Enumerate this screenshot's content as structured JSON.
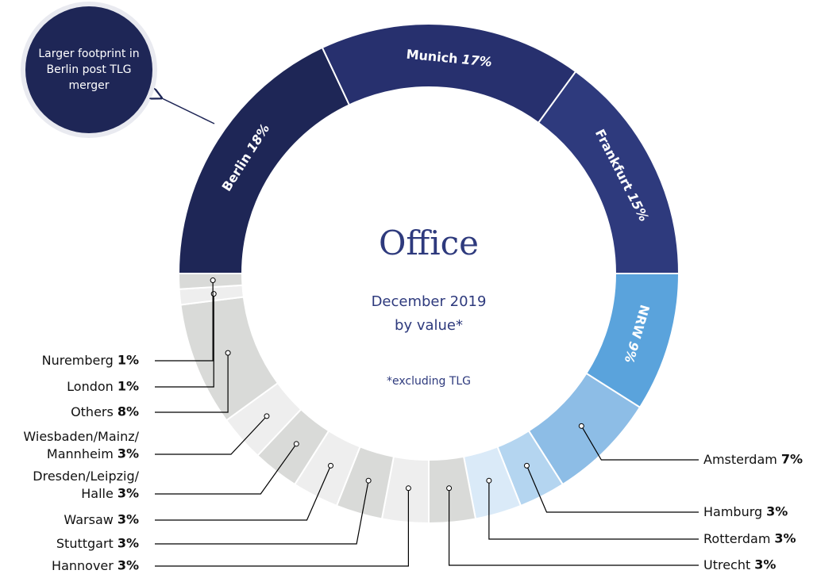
{
  "chart_data": {
    "type": "donut",
    "title": "Office",
    "subtitle": "December 2019 by value*",
    "note": "*excluding TLG",
    "callout": "Larger footprint in Berlin post TLG merger",
    "categories": [
      "Berlin",
      "Munich",
      "Frankfurt",
      "NRW",
      "Amsterdam",
      "Hamburg",
      "Rotterdam",
      "Utrecht",
      "Hannover",
      "Stuttgart",
      "Warsaw",
      "Dresden/Leipzig/Halle",
      "Wiesbaden/Mainz/Mannheim",
      "Others",
      "London",
      "Nuremberg"
    ],
    "values": [
      18,
      17,
      15,
      9,
      7,
      3,
      3,
      3,
      3,
      3,
      3,
      3,
      3,
      8,
      1,
      1
    ],
    "value_labels": [
      "18%",
      "17%",
      "15%",
      "9%",
      "7%",
      "3%",
      "3%",
      "3%",
      "3%",
      "3%",
      "3%",
      "3%",
      "3%",
      "8%",
      "1%",
      "1%"
    ],
    "colors": [
      "#1e2656",
      "#27306e",
      "#2e3a7d",
      "#5aa3dc",
      "#8dbde6",
      "#b4d5f0",
      "#daeaf8",
      "#d9dad8",
      "#eeeeee",
      "#d9dad8",
      "#eeeeee",
      "#d9dad8",
      "#eeeeee",
      "#d9dad8",
      "#eeeeee",
      "#d9dad8"
    ]
  }
}
